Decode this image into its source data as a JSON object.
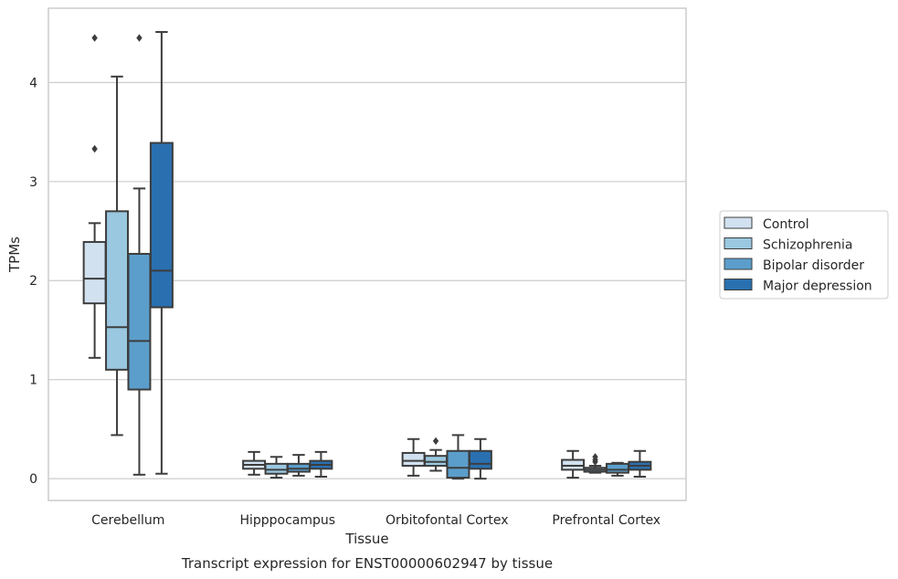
{
  "caption": "Transcript expression for ENST00000602947 by tissue",
  "chart_data": {
    "type": "box",
    "xlabel": "Tissue",
    "ylabel": "TPMs",
    "ylim": [
      -0.22,
      4.75
    ],
    "yticks": [
      0,
      1,
      2,
      3,
      4
    ],
    "grid": "horizontal",
    "legend_position": "right",
    "categories": [
      "Cerebellum",
      "Hipppocampus",
      "Orbitofontal Cortex",
      "Prefrontal Cortex"
    ],
    "series": [
      {
        "name": "Control",
        "color": "#d1e1f0",
        "boxes": [
          {
            "whisker_low": 1.22,
            "q1": 1.77,
            "median": 2.02,
            "q3": 2.39,
            "whisker_high": 2.58,
            "outliers": [
              3.33,
              4.45
            ]
          },
          {
            "whisker_low": 0.04,
            "q1": 0.1,
            "median": 0.14,
            "q3": 0.18,
            "whisker_high": 0.27,
            "outliers": []
          },
          {
            "whisker_low": 0.03,
            "q1": 0.13,
            "median": 0.18,
            "q3": 0.26,
            "whisker_high": 0.4,
            "outliers": []
          },
          {
            "whisker_low": 0.01,
            "q1": 0.09,
            "median": 0.13,
            "q3": 0.19,
            "whisker_high": 0.28,
            "outliers": []
          }
        ]
      },
      {
        "name": "Schizophrenia",
        "color": "#9ac8e0",
        "boxes": [
          {
            "whisker_low": 0.44,
            "q1": 1.1,
            "median": 1.53,
            "q3": 2.7,
            "whisker_high": 4.06,
            "outliers": []
          },
          {
            "whisker_low": 0.01,
            "q1": 0.05,
            "median": 0.09,
            "q3": 0.15,
            "whisker_high": 0.22,
            "outliers": []
          },
          {
            "whisker_low": 0.08,
            "q1": 0.13,
            "median": 0.17,
            "q3": 0.23,
            "whisker_high": 0.29,
            "outliers": [
              0.38
            ]
          },
          {
            "whisker_low": 0.06,
            "q1": 0.07,
            "median": 0.09,
            "q3": 0.11,
            "whisker_high": 0.13,
            "outliers": [
              0.17,
              0.19,
              0.22
            ]
          }
        ]
      },
      {
        "name": "Bipolar disorder",
        "color": "#5b9ecb",
        "boxes": [
          {
            "whisker_low": 0.04,
            "q1": 0.9,
            "median": 1.39,
            "q3": 2.27,
            "whisker_high": 2.93,
            "outliers": [
              4.45
            ]
          },
          {
            "whisker_low": 0.03,
            "q1": 0.07,
            "median": 0.1,
            "q3": 0.15,
            "whisker_high": 0.24,
            "outliers": []
          },
          {
            "whisker_low": 0.0,
            "q1": 0.01,
            "median": 0.11,
            "q3": 0.28,
            "whisker_high": 0.44,
            "outliers": []
          },
          {
            "whisker_low": 0.03,
            "q1": 0.06,
            "median": 0.09,
            "q3": 0.15,
            "whisker_high": 0.16,
            "outliers": []
          }
        ]
      },
      {
        "name": "Major depression",
        "color": "#2a70b0",
        "boxes": [
          {
            "whisker_low": 0.05,
            "q1": 1.73,
            "median": 2.1,
            "q3": 3.39,
            "whisker_high": 4.51,
            "outliers": []
          },
          {
            "whisker_low": 0.02,
            "q1": 0.1,
            "median": 0.14,
            "q3": 0.18,
            "whisker_high": 0.27,
            "outliers": []
          },
          {
            "whisker_low": 0.0,
            "q1": 0.1,
            "median": 0.15,
            "q3": 0.28,
            "whisker_high": 0.4,
            "outliers": []
          },
          {
            "whisker_low": 0.02,
            "q1": 0.09,
            "median": 0.13,
            "q3": 0.17,
            "whisker_high": 0.28,
            "outliers": []
          }
        ]
      }
    ]
  }
}
